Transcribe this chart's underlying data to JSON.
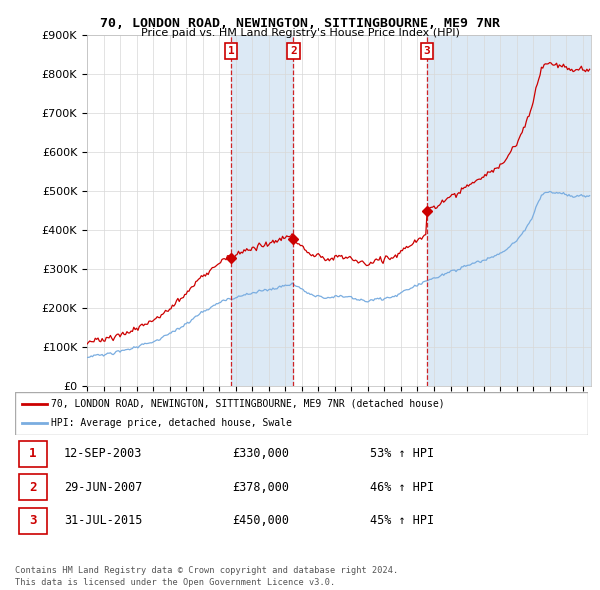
{
  "title": "70, LONDON ROAD, NEWINGTON, SITTINGBOURNE, ME9 7NR",
  "subtitle": "Price paid vs. HM Land Registry's House Price Index (HPI)",
  "ylabel_ticks": [
    "£0",
    "£100K",
    "£200K",
    "£300K",
    "£400K",
    "£500K",
    "£600K",
    "£700K",
    "£800K",
    "£900K"
  ],
  "ylim": [
    0,
    900000
  ],
  "xlim_start": 1995.0,
  "xlim_end": 2025.5,
  "sale_dates": [
    2003.71,
    2007.49,
    2015.58
  ],
  "sale_prices": [
    330000,
    378000,
    450000
  ],
  "sale_labels": [
    "1",
    "2",
    "3"
  ],
  "legend_line1": "70, LONDON ROAD, NEWINGTON, SITTINGBOURNE, ME9 7NR (detached house)",
  "legend_line2": "HPI: Average price, detached house, Swale",
  "table_rows": [
    [
      "1",
      "12-SEP-2003",
      "£330,000",
      "53% ↑ HPI"
    ],
    [
      "2",
      "29-JUN-2007",
      "£378,000",
      "46% ↑ HPI"
    ],
    [
      "3",
      "31-JUL-2015",
      "£450,000",
      "45% ↑ HPI"
    ]
  ],
  "footer": "Contains HM Land Registry data © Crown copyright and database right 2024.\nThis data is licensed under the Open Government Licence v3.0.",
  "red_color": "#cc0000",
  "blue_color": "#7aade0",
  "shade_color": "#dce9f5",
  "grid_color": "#d8d8d8",
  "bg_color": "#ffffff"
}
